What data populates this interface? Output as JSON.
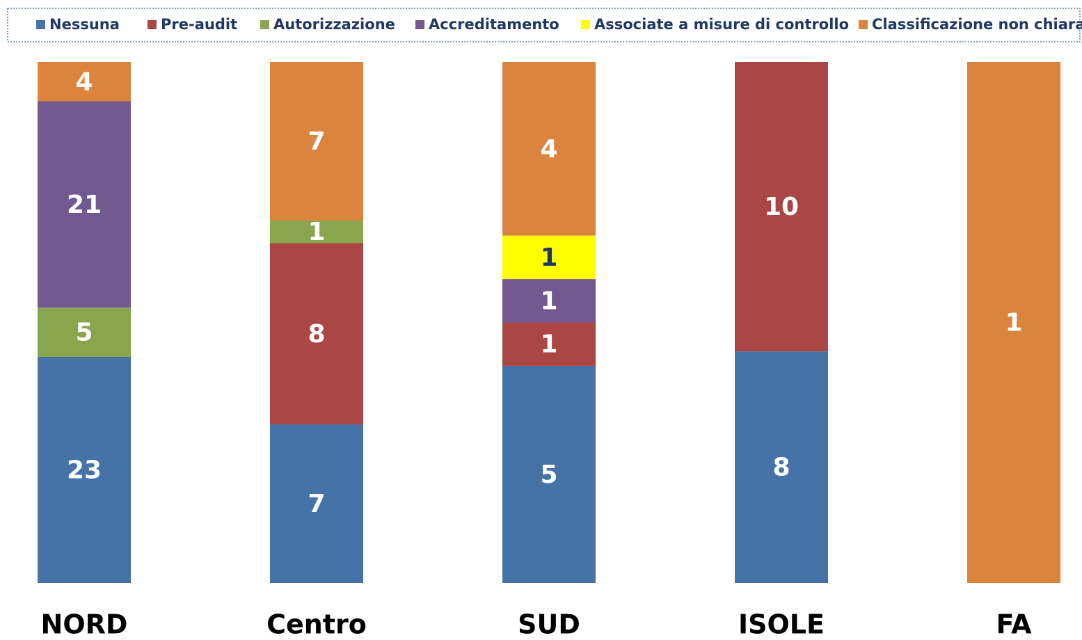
{
  "chart_data": {
    "type": "stacked_bar_percent",
    "categories": [
      "NORD",
      "Centro",
      "SUD",
      "ISOLE",
      "FA"
    ],
    "series": [
      {
        "name": "Nessuna",
        "color": "#4572a7",
        "values": [
          23,
          7,
          5,
          8,
          null
        ]
      },
      {
        "name": "Pre-audit",
        "color": "#aa4643",
        "values": [
          null,
          8,
          1,
          10,
          null
        ]
      },
      {
        "name": "Autorizzazione",
        "color": "#89a54e",
        "values": [
          5,
          1,
          null,
          null,
          null
        ]
      },
      {
        "name": "Accreditamento",
        "color": "#71588f",
        "values": [
          21,
          null,
          1,
          null,
          null
        ]
      },
      {
        "name": "Associate a misure di controllo",
        "color": "#ffff00",
        "values": [
          null,
          null,
          1,
          null,
          null
        ]
      },
      {
        "name": "Classificazione non chiara",
        "color": "#db843d",
        "values": [
          4,
          7,
          4,
          null,
          1
        ]
      }
    ],
    "legend": "top"
  }
}
